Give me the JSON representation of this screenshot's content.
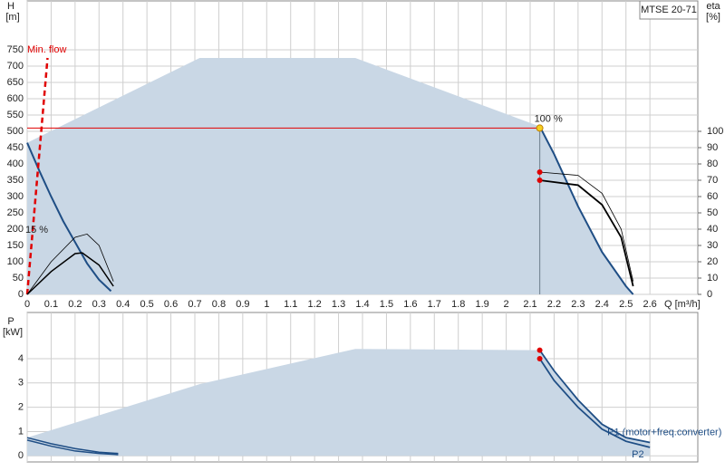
{
  "chart_data": [
    {
      "type": "line",
      "title": "MTSE 20-71",
      "ylabel": "H",
      "yunit": "[m]",
      "y2label": "eta",
      "y2unit": "[%]",
      "xlabel": "Q [m³/h]",
      "xlim": [
        0,
        2.8
      ],
      "xticks": [
        0,
        0.1,
        0.2,
        0.3,
        0.4,
        0.5,
        0.6,
        0.7,
        0.8,
        0.9,
        1,
        1.1,
        1.2,
        1.3,
        1.4,
        1.5,
        1.6,
        1.7,
        1.8,
        1.9,
        2,
        2.1,
        2.2,
        2.3,
        2.4,
        2.5,
        2.6
      ],
      "ylim": [
        0,
        900
      ],
      "yticks": [
        0,
        50,
        100,
        150,
        200,
        250,
        300,
        350,
        400,
        450,
        500,
        550,
        600,
        650,
        700,
        750
      ],
      "y2lim": [
        0,
        180
      ],
      "y2ticks": [
        0,
        10,
        20,
        30,
        40,
        50,
        60,
        70,
        80,
        90,
        100
      ],
      "grid": true,
      "series": [
        {
          "style": "area",
          "color": "#c9d7e5",
          "x": [
            0,
            0.72,
            1.37,
            2.14,
            2.2,
            2.3,
            2.4,
            2.5,
            2.53
          ],
          "values": [
            465,
            725,
            725,
            515,
            430,
            270,
            130,
            25,
            0
          ]
        },
        {
          "style": "line",
          "color": "#1f4e85",
          "width": 2,
          "x": [
            2.14,
            2.2,
            2.3,
            2.4,
            2.5,
            2.53
          ],
          "values": [
            515,
            430,
            270,
            130,
            25,
            0
          ]
        },
        {
          "style": "line",
          "color": "#1f4e85",
          "width": 2,
          "x": [
            0,
            0.05,
            0.1,
            0.15,
            0.2,
            0.25,
            0.3,
            0.35
          ],
          "values": [
            465,
            380,
            300,
            225,
            160,
            95,
            45,
            10
          ]
        },
        {
          "style": "dashed",
          "color": "#e00000",
          "width": 2.5,
          "x": [
            0,
            0.085
          ],
          "values": [
            0,
            725
          ]
        },
        {
          "style": "line",
          "color": "#000000",
          "width": 0.8,
          "axis": "y2",
          "x": [
            2.14,
            2.3,
            2.4,
            2.48,
            2.53
          ],
          "values": [
            75,
            73,
            62,
            40,
            8
          ]
        },
        {
          "style": "line",
          "color": "#000000",
          "width": 1.8,
          "axis": "y2",
          "x": [
            2.14,
            2.3,
            2.4,
            2.48,
            2.53
          ],
          "values": [
            70,
            67,
            55,
            35,
            5
          ]
        },
        {
          "style": "line",
          "color": "#000000",
          "width": 0.8,
          "axis": "y2",
          "x": [
            0,
            0.1,
            0.2,
            0.25,
            0.3,
            0.36
          ],
          "values": [
            0,
            20,
            35,
            37,
            30,
            8
          ]
        },
        {
          "style": "line",
          "color": "#000000",
          "width": 1.5,
          "axis": "y2",
          "x": [
            0,
            0.1,
            0.2,
            0.23,
            0.3,
            0.36
          ],
          "values": [
            0,
            14,
            25,
            25.5,
            18,
            5
          ]
        }
      ],
      "duty_point": {
        "x": 2.14,
        "y": 510,
        "label": "100 %"
      },
      "points": [
        {
          "x": 2.14,
          "y": 75,
          "axis": "y2",
          "color": "#e00000"
        },
        {
          "x": 2.14,
          "y": 70,
          "axis": "y2",
          "color": "#e00000"
        }
      ],
      "annotations": [
        "Min. flow",
        "15 %"
      ]
    },
    {
      "type": "line",
      "ylabel": "P",
      "yunit": "[kW]",
      "xlim": [
        0,
        2.8
      ],
      "ylim": [
        -0.25,
        5.9
      ],
      "yticks": [
        0,
        1,
        2,
        3,
        4
      ],
      "grid": true,
      "series": [
        {
          "style": "area",
          "color": "#c9d7e5",
          "x": [
            0,
            0.72,
            1.37,
            2.14,
            2.2,
            2.3,
            2.4,
            2.5,
            2.6
          ],
          "values": [
            0.75,
            2.95,
            4.4,
            4.35,
            3.5,
            2.3,
            1.3,
            0.75,
            0.55
          ]
        },
        {
          "name": "P1 (motor+freq.converter)",
          "style": "line",
          "color": "#1f4e85",
          "width": 1.8,
          "x": [
            2.14,
            2.2,
            2.3,
            2.4,
            2.5,
            2.6
          ],
          "values": [
            4.35,
            3.5,
            2.3,
            1.3,
            0.75,
            0.55
          ]
        },
        {
          "name": "P2",
          "style": "line",
          "color": "#1f4e85",
          "width": 1.8,
          "x": [
            2.14,
            2.2,
            2.3,
            2.4,
            2.5,
            2.6
          ],
          "values": [
            4.0,
            3.1,
            2.0,
            1.1,
            0.6,
            0.35
          ]
        },
        {
          "style": "line",
          "color": "#1f4e85",
          "width": 1.5,
          "x": [
            0,
            0.1,
            0.2,
            0.3,
            0.38
          ],
          "values": [
            0.75,
            0.5,
            0.3,
            0.15,
            0.1
          ]
        },
        {
          "style": "line",
          "color": "#1f4e85",
          "width": 1.5,
          "x": [
            0,
            0.1,
            0.2,
            0.3,
            0.38
          ],
          "values": [
            0.65,
            0.4,
            0.2,
            0.1,
            0.05
          ]
        }
      ],
      "points": [
        {
          "x": 2.14,
          "y": 4.35,
          "color": "#e00000"
        },
        {
          "x": 2.14,
          "y": 4.0,
          "color": "#e00000"
        }
      ]
    }
  ]
}
